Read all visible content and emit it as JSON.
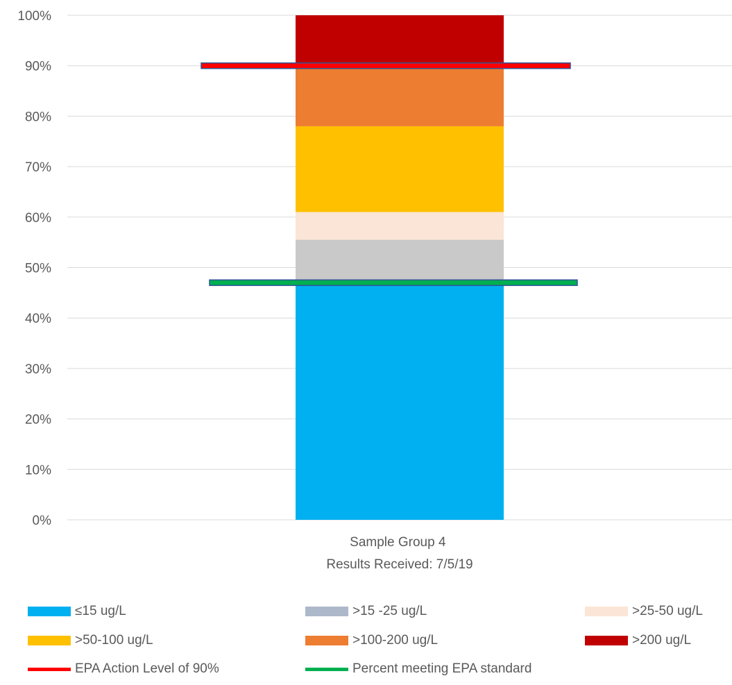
{
  "chart_data": {
    "type": "bar",
    "stacked": true,
    "categories": [
      "Sample Group 4\nResults Received:  7/5/19"
    ],
    "category_lines": [
      "Sample Group 4",
      "Results Received:  7/5/19"
    ],
    "ylim": [
      0,
      100
    ],
    "y_ticks": [
      "0%",
      "10%",
      "20%",
      "30%",
      "40%",
      "50%",
      "60%",
      "70%",
      "80%",
      "90%",
      "100%"
    ],
    "grid": true,
    "legend_position": "bottom",
    "series": [
      {
        "name": "≤15 ug/L",
        "values": [
          47
        ],
        "color": "#00B0F0"
      },
      {
        "name": ">15 -25 ug/L",
        "values": [
          8.5
        ],
        "color": "#C9C9C9"
      },
      {
        "name": ">25-50 ug/L",
        "values": [
          5.5
        ],
        "color": "#FBE5D6"
      },
      {
        "name": ">50-100 ug/L",
        "values": [
          17
        ],
        "color": "#FFC000"
      },
      {
        "name": ">100-200 ug/L",
        "values": [
          12
        ],
        "color": "#ED7D31"
      },
      {
        "name": ">200 ug/L",
        "values": [
          10
        ],
        "color": "#C00000"
      }
    ],
    "reference_lines": [
      {
        "name": "EPA Action Level of 90%",
        "value": 90,
        "color": "#FF0000"
      },
      {
        "name": "Percent meeting EPA standard",
        "value": 47,
        "color": "#00B050"
      }
    ],
    "legend_swatch_colors": {
      ">15 -25 ug/L": "#ADB9CA"
    }
  }
}
